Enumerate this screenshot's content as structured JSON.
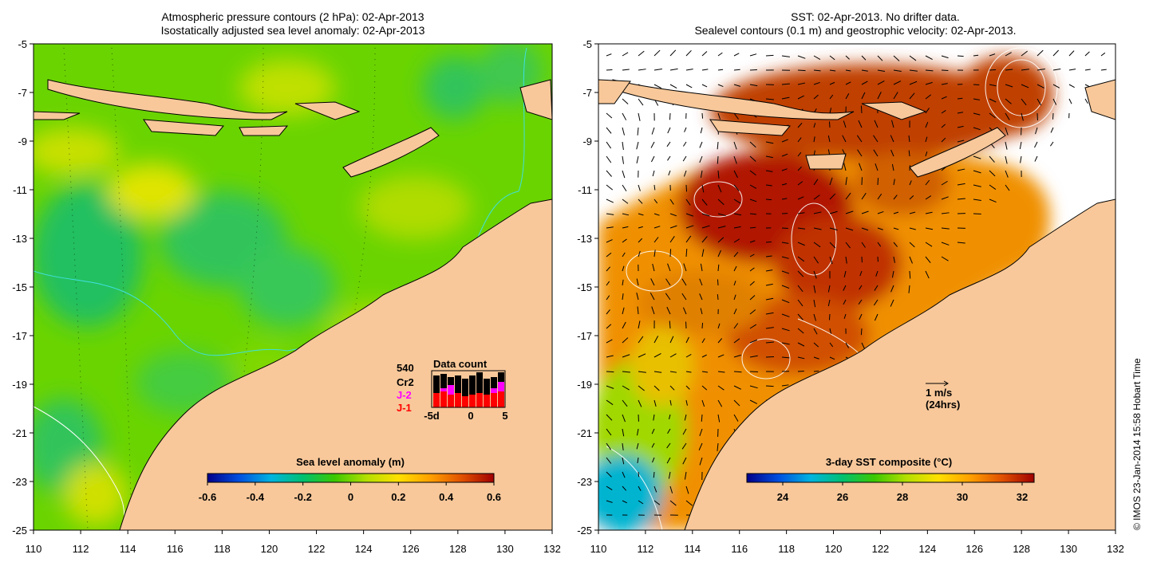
{
  "left_panel": {
    "title_line1": "Atmospheric pressure contours (2 hPa): 02-Apr-2013",
    "title_line2": "Isostatically adjusted sea level anomaly: 02-Apr-2013",
    "x_ticks": [
      "110",
      "112",
      "114",
      "116",
      "118",
      "120",
      "122",
      "124",
      "126",
      "128",
      "130",
      "132"
    ],
    "y_ticks": [
      "-5",
      "-7",
      "-9",
      "-11",
      "-13",
      "-15",
      "-17",
      "-19",
      "-21",
      "-23",
      "-25"
    ],
    "colorbar": {
      "label": "Sea level anomaly (m)",
      "ticks": [
        "-0.6",
        "-0.4",
        "-0.2",
        "0",
        "0.2",
        "0.4",
        "0.6"
      ],
      "range": [
        -0.6,
        0.6
      ],
      "palette": [
        "#00008a",
        "#0050e0",
        "#00b4e0",
        "#00c070",
        "#3cc800",
        "#b4e000",
        "#ffe000",
        "#ffa000",
        "#e05000",
        "#a00000"
      ]
    },
    "inset": {
      "count": "540",
      "sat1": "Cr2",
      "sat2": "J-2",
      "sat3": "J-1",
      "title": "Data count",
      "x_labels": [
        "-5d",
        "0",
        "5"
      ],
      "colors": {
        "cr2": "#000000",
        "j2": "#ff00ff",
        "j1": "#ff0000"
      }
    }
  },
  "right_panel": {
    "title_line1": "SST: 02-Apr-2013. No drifter data.",
    "title_line2": "Sealevel contours (0.1 m) and geostrophic velocity: 02-Apr-2013.",
    "x_ticks": [
      "110",
      "112",
      "114",
      "116",
      "118",
      "120",
      "122",
      "124",
      "126",
      "128",
      "130",
      "132"
    ],
    "y_ticks": [
      "-5",
      "-7",
      "-9",
      "-11",
      "-13",
      "-15",
      "-17",
      "-19",
      "-21",
      "-23",
      "-25"
    ],
    "colorbar": {
      "label": "3-day SST composite (°C)",
      "ticks": [
        "24",
        "26",
        "28",
        "30",
        "32"
      ],
      "range": [
        22.8,
        32.4
      ],
      "palette": [
        "#00008a",
        "#0050e0",
        "#00b4e0",
        "#00c070",
        "#3cc800",
        "#b4e000",
        "#ffe000",
        "#ffa000",
        "#e05000",
        "#a00000"
      ]
    },
    "vector_scale": {
      "speed": "1 m/s",
      "duration": "(24hrs)"
    }
  },
  "credit": "© IMOS 23-Jan-2014 15:58 Hobart Time",
  "colors": {
    "land": "#f8c89a",
    "frame": "#000000",
    "contour": "#ffffff",
    "ocean_mid": "#7ad800",
    "sst_hot": "#a81000"
  }
}
